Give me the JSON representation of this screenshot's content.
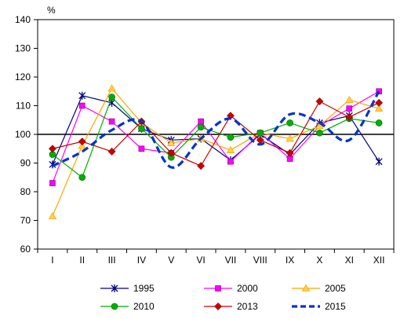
{
  "chart_data": {
    "type": "line",
    "unit": "%",
    "categories": [
      "I",
      "II",
      "III",
      "IV",
      "V",
      "VI",
      "VII",
      "VIII",
      "IX",
      "X",
      "XI",
      "XII"
    ],
    "ylim": [
      60,
      140
    ],
    "yticks": [
      60,
      70,
      80,
      90,
      100,
      110,
      120,
      130,
      140
    ],
    "reference_line": 100,
    "grid": false,
    "legend_position": "bottom",
    "series": [
      {
        "name": "1995",
        "color": "#000080",
        "marker": "star",
        "dashed": false,
        "values": [
          89.5,
          113.5,
          111,
          102,
          98,
          98.5,
          91,
          100,
          93,
          104,
          106.5,
          90.5
        ]
      },
      {
        "name": "2000",
        "color": "#ff00ff",
        "marker": "square",
        "dashed": false,
        "values": [
          83,
          110,
          104.5,
          95,
          93.5,
          104.5,
          90.5,
          100.5,
          91.5,
          103,
          109,
          115
        ]
      },
      {
        "name": "2005",
        "color": "#ffa500",
        "marker": "triangle",
        "dashed": false,
        "values": [
          71.5,
          96,
          116,
          104,
          97,
          98.5,
          94.5,
          100.5,
          98.5,
          103,
          112,
          109
        ]
      },
      {
        "name": "2010",
        "color": "#00b000",
        "marker": "circle",
        "dashed": false,
        "values": [
          93,
          85,
          113,
          102,
          92,
          102.5,
          99,
          100.5,
          104,
          100.5,
          105.5,
          104
        ]
      },
      {
        "name": "2013",
        "color": "#cc0000",
        "marker": "diamond",
        "dashed": false,
        "values": [
          95,
          97.5,
          94,
          104.5,
          93.5,
          89,
          106.5,
          98,
          93.5,
          111.5,
          106,
          111
        ]
      },
      {
        "name": "2015",
        "color": "#0033cc",
        "marker": "none",
        "dashed": true,
        "values": [
          89,
          94,
          101.5,
          104.5,
          88.5,
          98.5,
          105.5,
          96.5,
          107,
          104,
          98,
          115
        ]
      }
    ]
  }
}
